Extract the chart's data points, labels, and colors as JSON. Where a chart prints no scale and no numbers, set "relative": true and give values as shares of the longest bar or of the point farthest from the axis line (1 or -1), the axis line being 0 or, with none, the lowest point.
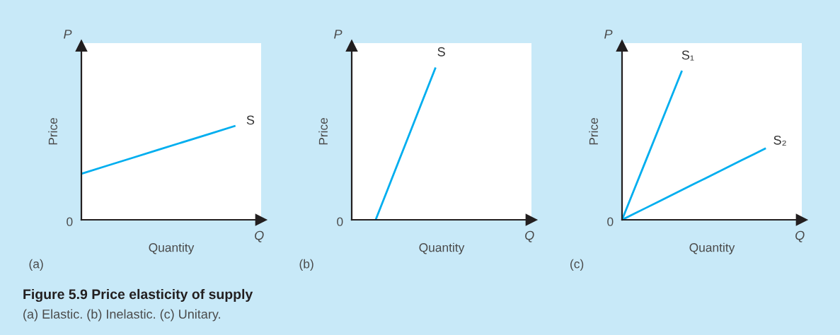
{
  "chart_data": [
    {
      "type": "line",
      "relative": true,
      "title": "(a)",
      "xlabel": "Quantity",
      "ylabel": "Price",
      "annotations": [
        "P",
        "Q",
        "0"
      ],
      "categories": [
        null,
        null,
        null,
        null,
        null,
        null,
        null,
        null
      ],
      "series": [
        {
          "name": "S",
          "color": "#00aeef",
          "values": [
            0.49,
            0.575,
            0.66,
            0.745,
            0.83,
            0.915,
            1,
            null
          ]
        }
      ]
    },
    {
      "type": "line",
      "relative": true,
      "title": "(b)",
      "xlabel": "Quantity",
      "ylabel": "Price",
      "annotations": [
        "P",
        "Q",
        "0"
      ],
      "categories": [
        null,
        null,
        null,
        null,
        null,
        null,
        null,
        null,
        null,
        null,
        null,
        null,
        null,
        null,
        null,
        null
      ],
      "series": [
        {
          "name": "S",
          "color": "#00aeef",
          "values": [
            null,
            null,
            0,
            0.2,
            0.4,
            0.6,
            0.8,
            1,
            null,
            null,
            null,
            null,
            null,
            null,
            null,
            null
          ]
        }
      ]
    },
    {
      "type": "line",
      "relative": true,
      "title": "(c)",
      "xlabel": "Quantity",
      "ylabel": "Price",
      "annotations": [
        "P",
        "Q",
        "0"
      ],
      "categories": [
        null,
        null,
        null,
        null,
        null,
        null,
        null,
        null,
        null,
        null,
        null,
        null,
        null,
        null,
        null,
        null
      ],
      "series": [
        {
          "name": "S₁",
          "color": "#00aeef",
          "values": [
            0,
            0.2,
            0.4,
            0.6,
            0.8,
            1,
            null,
            null,
            null,
            null,
            null,
            null,
            null,
            null,
            null,
            null
          ]
        },
        {
          "name": "S₂",
          "color": "#00aeef",
          "values": [
            0,
            0.04,
            0.08,
            0.12,
            0.16,
            0.2,
            0.24,
            0.28,
            0.32,
            0.36,
            0.4,
            0.44,
            0.48,
            null,
            null,
            null
          ]
        }
      ]
    },
    {
      "type": "other",
      "title": "Figure 5.9 Price elasticity of supply",
      "subtitle": "(a) Elastic. (b) Inelastic. (c) Unitary."
    }
  ]
}
